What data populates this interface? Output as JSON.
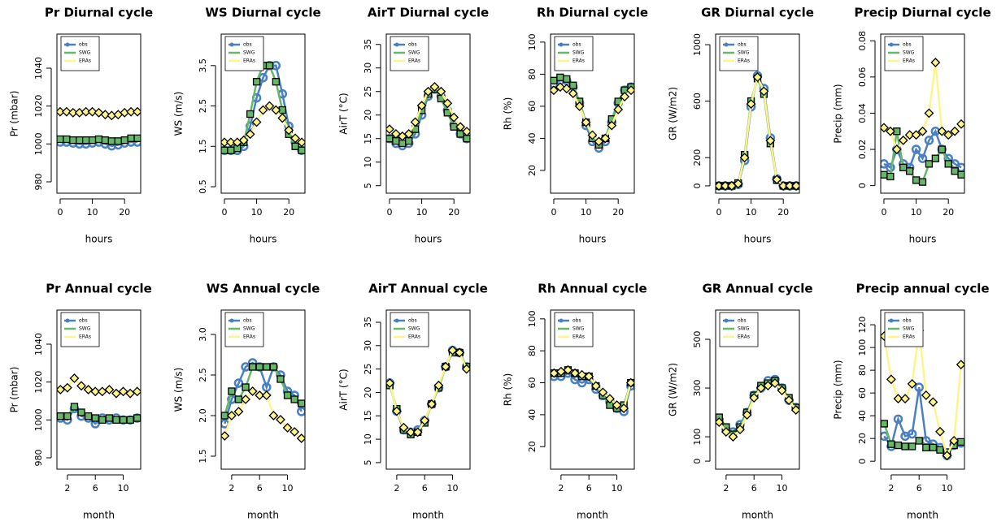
{
  "chart_data": [
    {
      "type": "line",
      "title": "Pr Diurnal cycle",
      "xlabel": "hours",
      "ylabel": "Pr (mbar)",
      "legend": "topleft",
      "x": [
        0,
        2,
        4,
        6,
        8,
        10,
        12,
        14,
        16,
        18,
        20,
        22,
        24
      ],
      "xlim": [
        -1,
        25
      ],
      "xticks": [
        0,
        10,
        20
      ],
      "ylim": [
        974,
        1058
      ],
      "yticks": [
        980,
        1000,
        1020,
        1040
      ],
      "series": [
        {
          "name": "obs",
          "color": "#4a7fc1",
          "values": [
            1001,
            1001,
            1000.5,
            1000,
            1000,
            1000.5,
            1001,
            1000,
            999,
            999.5,
            1000.5,
            1001,
            1001
          ]
        },
        {
          "name": "SWG",
          "color": "#66b868",
          "values": [
            1002.5,
            1002.5,
            1002,
            1002,
            1002,
            1002,
            1002.5,
            1002,
            1001.5,
            1001.5,
            1002,
            1003,
            1003
          ]
        },
        {
          "name": "ERAs",
          "color": "#fff48c",
          "values": [
            1017,
            1017,
            1016.5,
            1016.5,
            1017,
            1017,
            1016.5,
            1015.5,
            1015,
            1015.5,
            1016.5,
            1017,
            1017
          ]
        }
      ]
    },
    {
      "type": "line",
      "title": "WS Diurnal cycle",
      "xlabel": "hours",
      "ylabel": "WS (m/s)",
      "legend": "topleft",
      "x": [
        0,
        2,
        4,
        6,
        8,
        10,
        12,
        14,
        16,
        18,
        20,
        22,
        24
      ],
      "xlim": [
        -1,
        25
      ],
      "xticks": [
        0,
        10,
        20
      ],
      "ylim": [
        0.34,
        4.28
      ],
      "yticks": [
        0.5,
        1.5,
        2.5,
        3.5
      ],
      "series": [
        {
          "name": "obs",
          "color": "#4a7fc1",
          "values": [
            1.4,
            1.4,
            1.4,
            1.5,
            2.0,
            2.7,
            3.2,
            3.5,
            3.5,
            2.8,
            2.0,
            1.6,
            1.4
          ]
        },
        {
          "name": "SWG",
          "color": "#66b868",
          "values": [
            1.4,
            1.4,
            1.45,
            1.6,
            2.3,
            3.1,
            3.5,
            3.5,
            3.1,
            2.4,
            1.8,
            1.5,
            1.4
          ]
        },
        {
          "name": "ERAs",
          "color": "#fff48c",
          "values": [
            1.6,
            1.6,
            1.6,
            1.65,
            1.8,
            2.1,
            2.4,
            2.5,
            2.4,
            2.2,
            1.9,
            1.7,
            1.6
          ]
        }
      ]
    },
    {
      "type": "line",
      "title": "AirT Diurnal cycle",
      "xlabel": "hours",
      "ylabel": "AirT (°C)",
      "legend": "topleft",
      "x": [
        0,
        2,
        4,
        6,
        8,
        10,
        12,
        14,
        16,
        18,
        20,
        22,
        24
      ],
      "xlim": [
        -1,
        25
      ],
      "xticks": [
        0,
        10,
        20
      ],
      "ylim": [
        3.4,
        37.2
      ],
      "yticks": [
        5,
        10,
        15,
        20,
        25,
        30,
        35
      ],
      "series": [
        {
          "name": "obs",
          "color": "#4a7fc1",
          "values": [
            15,
            14,
            13.5,
            14,
            16,
            20,
            24,
            25.5,
            24,
            21,
            18,
            16,
            15
          ]
        },
        {
          "name": "SWG",
          "color": "#66b868",
          "values": [
            15,
            14.5,
            14,
            14.5,
            17,
            21,
            24.5,
            25.5,
            23.5,
            20.5,
            17.5,
            16,
            15
          ]
        },
        {
          "name": "ERAs",
          "color": "#fff48c",
          "values": [
            17,
            16,
            15.5,
            16,
            18.5,
            22,
            25,
            26,
            25,
            22.5,
            19.5,
            17.5,
            16.5
          ]
        }
      ]
    },
    {
      "type": "line",
      "title": "Rh Diurnal cycle",
      "xlabel": "hours",
      "ylabel": "Rh (%)",
      "legend": "topleft",
      "x": [
        0,
        2,
        4,
        6,
        8,
        10,
        12,
        14,
        16,
        18,
        20,
        22,
        24
      ],
      "xlim": [
        -1,
        25
      ],
      "xticks": [
        0,
        10,
        20
      ],
      "ylim": [
        5.8,
        105
      ],
      "yticks": [
        20,
        40,
        60,
        80,
        100
      ],
      "series": [
        {
          "name": "obs",
          "color": "#4a7fc1",
          "values": [
            74,
            76,
            76,
            72,
            62,
            48,
            38,
            34,
            38,
            50,
            62,
            70,
            72
          ]
        },
        {
          "name": "SWG",
          "color": "#66b868",
          "values": [
            76,
            78,
            77,
            73,
            63,
            50,
            40,
            36,
            40,
            52,
            63,
            70,
            72
          ]
        },
        {
          "name": "ERAs",
          "color": "#fff48c",
          "values": [
            70,
            72,
            71,
            68,
            60,
            50,
            42,
            38,
            40,
            48,
            58,
            66,
            70
          ]
        }
      ]
    },
    {
      "type": "line",
      "title": "GR Diurnal cycle",
      "xlabel": "hours",
      "ylabel": "GR (W/m2)",
      "legend": "topleft",
      "x": [
        0,
        2,
        4,
        6,
        8,
        10,
        12,
        14,
        16,
        18,
        20,
        22,
        24
      ],
      "xlim": [
        -1,
        25
      ],
      "xticks": [
        0,
        10,
        20
      ],
      "ylim": [
        -52,
        1075
      ],
      "yticks": [
        0,
        200,
        600,
        1000
      ],
      "series": [
        {
          "name": "obs",
          "color": "#4a7fc1",
          "values": [
            0,
            0,
            0,
            10,
            180,
            560,
            780,
            690,
            340,
            50,
            0,
            0,
            0
          ]
        },
        {
          "name": "SWG",
          "color": "#66b868",
          "values": [
            0,
            0,
            0,
            20,
            220,
            600,
            760,
            650,
            300,
            40,
            0,
            0,
            0
          ]
        },
        {
          "name": "ERAs",
          "color": "#fff48c",
          "values": [
            0,
            0,
            0,
            15,
            200,
            580,
            770,
            670,
            320,
            45,
            0,
            0,
            0
          ]
        }
      ]
    },
    {
      "type": "line",
      "title": "Precip Diurnal cycle",
      "xlabel": "hours",
      "ylabel": "Precip (mm)",
      "legend": "topleft",
      "x": [
        0,
        2,
        4,
        6,
        8,
        10,
        12,
        14,
        16,
        18,
        20,
        22,
        24
      ],
      "xlim": [
        -1,
        25
      ],
      "xticks": [
        0,
        10,
        20
      ],
      "ylim": [
        -0.0042,
        0.0837
      ],
      "yticks": [
        0,
        0.02,
        0.04,
        0.06,
        0.08
      ],
      "series": [
        {
          "name": "obs",
          "color": "#4a7fc1",
          "values": [
            0.012,
            0.01,
            0.02,
            0.012,
            0.01,
            0.02,
            0.015,
            0.025,
            0.03,
            0.02,
            0.015,
            0.012,
            0.01
          ]
        },
        {
          "name": "SWG",
          "color": "#66b868",
          "values": [
            0.006,
            0.005,
            0.03,
            0.01,
            0.008,
            0.003,
            0.002,
            0.012,
            0.015,
            0.02,
            0.012,
            0.008,
            0.006
          ]
        },
        {
          "name": "ERAs",
          "color": "#fff48c",
          "values": [
            0.032,
            0.03,
            0.02,
            0.025,
            0.028,
            0.028,
            0.03,
            0.04,
            0.068,
            0.03,
            0.028,
            0.03,
            0.034
          ]
        }
      ]
    },
    {
      "type": "line",
      "title": "Pr Annual cycle",
      "xlabel": "month",
      "ylabel": "Pr (mbar)",
      "legend": "topleft",
      "x": [
        1,
        2,
        3,
        4,
        5,
        6,
        7,
        8,
        9,
        10,
        11,
        12
      ],
      "xlim": [
        0.5,
        12.5
      ],
      "xticks": [
        2,
        6,
        10
      ],
      "ylim": [
        974,
        1058
      ],
      "yticks": [
        980,
        1000,
        1020,
        1040
      ],
      "series": [
        {
          "name": "obs",
          "color": "#4a7fc1",
          "values": [
            1001,
            1000,
            1006,
            1002,
            1001,
            998,
            1001,
            1000,
            1001,
            1000,
            1000,
            1001
          ]
        },
        {
          "name": "SWG",
          "color": "#66b868",
          "values": [
            1002,
            1002,
            1007,
            1004,
            1002,
            1001,
            1000,
            1001,
            1000,
            1000,
            1000,
            1001
          ]
        },
        {
          "name": "ERAs",
          "color": "#fff48c",
          "values": [
            1016,
            1017,
            1022,
            1018,
            1016,
            1015,
            1015,
            1016,
            1014,
            1015,
            1014,
            1015
          ]
        }
      ]
    },
    {
      "type": "line",
      "title": "WS Annual cycle",
      "xlabel": "month",
      "ylabel": "WS (m/s)",
      "legend": "topleft",
      "x": [
        1,
        2,
        3,
        4,
        5,
        6,
        7,
        8,
        9,
        10,
        11,
        12
      ],
      "xlim": [
        0.5,
        12.5
      ],
      "xticks": [
        2,
        6,
        10
      ],
      "ylim": [
        1.34,
        3.3
      ],
      "yticks": [
        1.5,
        {
          "value": 2,
          "label": "2.0"
        },
        2.5,
        {
          "value": 3,
          "label": "3.0"
        }
      ],
      "series": [
        {
          "name": "obs",
          "color": "#4a7fc1",
          "values": [
            1.9,
            2.2,
            2.4,
            2.6,
            2.65,
            2.6,
            2.35,
            2.6,
            2.5,
            2.3,
            2.25,
            2.05
          ]
        },
        {
          "name": "SWG",
          "color": "#66b868",
          "values": [
            2.0,
            2.3,
            2.2,
            2.35,
            2.6,
            2.6,
            2.6,
            2.6,
            2.45,
            2.25,
            2.2,
            2.15
          ]
        },
        {
          "name": "ERAs",
          "color": "#fff48c",
          "values": [
            1.75,
            2.0,
            2.05,
            2.2,
            2.3,
            2.25,
            2.25,
            2.0,
            1.95,
            1.85,
            1.8,
            1.72
          ]
        }
      ]
    },
    {
      "type": "line",
      "title": "AirT Annual cycle",
      "xlabel": "month",
      "ylabel": "AirT (°C)",
      "legend": "topleft",
      "x": [
        1,
        2,
        3,
        4,
        5,
        6,
        7,
        8,
        9,
        10,
        11,
        12
      ],
      "xlim": [
        0.5,
        12.5
      ],
      "xticks": [
        2,
        6,
        10
      ],
      "ylim": [
        3.6,
        37.6
      ],
      "yticks": [
        5,
        10,
        15,
        20,
        25,
        30,
        35
      ],
      "series": [
        {
          "name": "obs",
          "color": "#4a7fc1",
          "values": [
            22,
            16,
            12,
            11.5,
            12,
            14,
            17.5,
            21,
            25.5,
            29,
            28.5,
            25.5
          ]
        },
        {
          "name": "SWG",
          "color": "#66b868",
          "values": [
            21.5,
            16.5,
            12,
            11,
            11.5,
            13.5,
            17.5,
            21,
            25.5,
            28.5,
            28.5,
            25.5
          ]
        },
        {
          "name": "ERAs",
          "color": "#fff48c",
          "values": [
            22,
            16,
            12.5,
            11.5,
            11.5,
            14,
            17.5,
            21.5,
            25.5,
            29,
            28.5,
            25
          ]
        }
      ]
    },
    {
      "type": "line",
      "title": "Rh Annual cycle",
      "xlabel": "month",
      "ylabel": "Rh (%)",
      "legend": "topleft",
      "x": [
        1,
        2,
        3,
        4,
        5,
        6,
        7,
        8,
        9,
        10,
        11,
        12
      ],
      "xlim": [
        0.5,
        12.5
      ],
      "xticks": [
        2,
        6,
        10
      ],
      "ylim": [
        5.9,
        105.5
      ],
      "yticks": [
        20,
        40,
        60,
        80,
        100
      ],
      "series": [
        {
          "name": "obs",
          "color": "#4a7fc1",
          "values": [
            64,
            64,
            66,
            62,
            60,
            62,
            56,
            52,
            48,
            44,
            42,
            58
          ]
        },
        {
          "name": "SWG",
          "color": "#66b868",
          "values": [
            66,
            66,
            68,
            66,
            64,
            64,
            58,
            52,
            46,
            44,
            46,
            60
          ]
        },
        {
          "name": "ERAs",
          "color": "#fff48c",
          "values": [
            66,
            67,
            68,
            66,
            65,
            64,
            58,
            54,
            50,
            46,
            44,
            60
          ]
        }
      ]
    },
    {
      "type": "line",
      "title": "GR Annual cycle",
      "xlabel": "month",
      "ylabel": "GR (W/m2)",
      "legend": "topleft",
      "x": [
        1,
        2,
        3,
        4,
        5,
        6,
        7,
        8,
        9,
        10,
        11,
        12
      ],
      "xlim": [
        0.5,
        12.5
      ],
      "xticks": [
        2,
        6,
        10
      ],
      "ylim": [
        -33,
        620
      ],
      "yticks": [
        0,
        100,
        300,
        500
      ],
      "series": [
        {
          "name": "obs",
          "color": "#4a7fc1",
          "values": [
            170,
            130,
            120,
            150,
            200,
            270,
            300,
            330,
            335,
            300,
            250,
            220
          ]
        },
        {
          "name": "SWG",
          "color": "#66b868",
          "values": [
            180,
            140,
            110,
            140,
            200,
            270,
            310,
            320,
            330,
            300,
            260,
            220
          ]
        },
        {
          "name": "ERAs",
          "color": "#fff48c",
          "values": [
            160,
            120,
            100,
            130,
            190,
            260,
            300,
            310,
            320,
            290,
            250,
            210
          ]
        }
      ]
    },
    {
      "type": "line",
      "title": "Precip annual cycle",
      "xlabel": "month",
      "ylabel": "Precip (mm)",
      "legend": "topleft",
      "x": [
        1,
        2,
        3,
        4,
        5,
        6,
        7,
        8,
        9,
        10,
        11,
        12
      ],
      "xlim": [
        0.5,
        12.5
      ],
      "xticks": [
        2,
        6,
        10
      ],
      "ylim": [
        -7,
        132.9
      ],
      "yticks": [
        0,
        20,
        40,
        60,
        80,
        100,
        120
      ],
      "series": [
        {
          "name": "obs",
          "color": "#4a7fc1",
          "values": [
            22,
            13,
            37,
            22,
            24,
            65,
            18,
            15,
            12,
            5,
            14,
            16
          ]
        },
        {
          "name": "SWG",
          "color": "#66b868",
          "values": [
            33,
            15,
            14,
            13,
            13,
            18,
            12,
            12,
            10,
            8,
            14,
            17
          ]
        },
        {
          "name": "ERAs",
          "color": "#fff48c",
          "values": [
            110,
            72,
            55,
            55,
            68,
            115,
            58,
            52,
            26,
            5,
            18,
            85
          ]
        }
      ]
    }
  ]
}
